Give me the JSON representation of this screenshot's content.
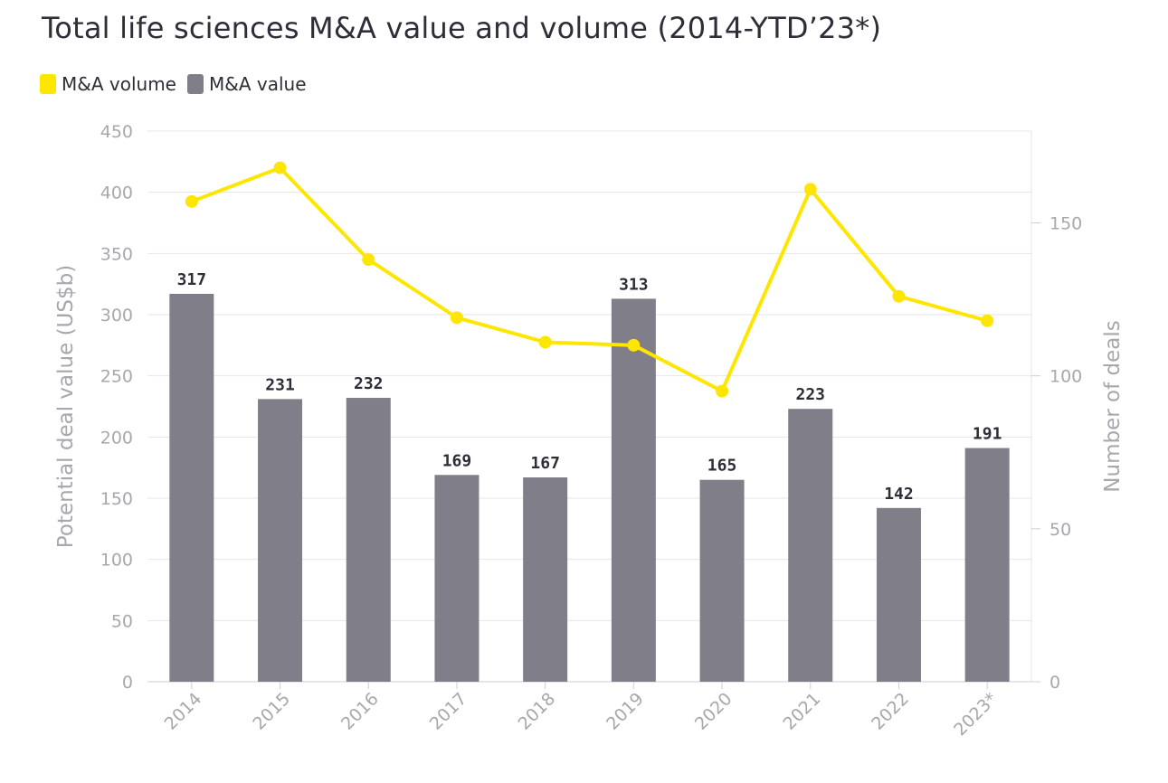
{
  "chart_data": {
    "type": "bar+line",
    "title": "Total life sciences M&A value and volume (2014-YTD’23*)",
    "categories": [
      "2014",
      "2015",
      "2016",
      "2017",
      "2018",
      "2019",
      "2020",
      "2021",
      "2022",
      "2023*"
    ],
    "series": [
      {
        "name": "M&A value",
        "type": "bar",
        "axis": "left",
        "values": [
          317,
          231,
          232,
          169,
          167,
          313,
          165,
          223,
          142,
          191
        ],
        "color": "#7f7e89"
      },
      {
        "name": "M&A volume",
        "type": "line",
        "axis": "right",
        "values": [
          157,
          168,
          138,
          119,
          111,
          110,
          95,
          161,
          126,
          118
        ],
        "color": "#ffe600"
      }
    ],
    "ylabel": "Potential deal value (US$b)",
    "y2label": "Number of deals",
    "ylim": [
      0,
      450
    ],
    "y2lim": [
      0,
      180
    ],
    "yticks": [
      "0",
      "50",
      "100",
      "150",
      "200",
      "250",
      "300",
      "350",
      "400",
      "450"
    ],
    "y2ticks": [
      "0",
      "50",
      "100",
      "150"
    ],
    "grid": true,
    "legend_position": "top-left"
  }
}
